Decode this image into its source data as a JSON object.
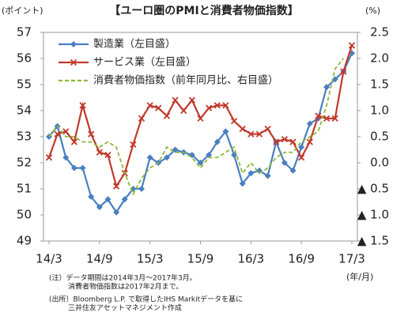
{
  "chart_data": {
    "type": "line",
    "title": "【ユーロ圏のPMIと消費者物価指数】",
    "y_label": "(ポイント)",
    "y2_label": "(%)",
    "x_label": "(年/月)",
    "categories": [
      "14/3",
      null,
      null,
      null,
      null,
      null,
      "14/9",
      null,
      null,
      null,
      null,
      null,
      "15/3",
      null,
      null,
      null,
      null,
      null,
      "15/9",
      null,
      null,
      null,
      null,
      null,
      "16/3",
      null,
      null,
      null,
      null,
      null,
      "16/9",
      null,
      null,
      null,
      null,
      null,
      "17/3"
    ],
    "series": [
      {
        "name": "製造業（左目盛）",
        "color": "#4a7fc1",
        "marker": "diamond",
        "values": [
          53.0,
          53.4,
          52.2,
          51.8,
          51.8,
          50.7,
          50.3,
          50.6,
          50.1,
          50.6,
          51.0,
          51.0,
          52.2,
          52.0,
          52.2,
          52.5,
          52.4,
          52.3,
          52.0,
          52.3,
          52.8,
          53.2,
          52.3,
          51.2,
          51.6,
          51.7,
          51.5,
          52.8,
          52.0,
          51.7,
          52.6,
          53.5,
          53.7,
          54.9,
          55.2,
          55.5,
          56.2
        ]
      },
      {
        "name": "サービス業（左目盛）",
        "color": "#c0392b",
        "marker": "x",
        "values": [
          52.2,
          53.1,
          53.2,
          52.8,
          54.2,
          53.1,
          52.4,
          52.3,
          51.1,
          51.6,
          52.7,
          53.7,
          54.2,
          54.1,
          53.8,
          54.4,
          54.0,
          54.4,
          53.7,
          54.1,
          54.2,
          54.2,
          53.6,
          53.3,
          53.1,
          53.1,
          53.3,
          52.8,
          52.9,
          52.8,
          52.2,
          52.8,
          53.8,
          53.7,
          53.7,
          55.5,
          56.5
        ]
      },
      {
        "name": "消費者物価指数（前年同月比、右目盛）",
        "color": "#8db83a",
        "dash": true,
        "axis": "y2",
        "values": [
          0.5,
          0.7,
          0.5,
          0.5,
          0.4,
          0.4,
          0.3,
          0.4,
          0.3,
          -0.2,
          -0.6,
          -0.3,
          -0.1,
          0.0,
          0.3,
          0.2,
          0.2,
          0.1,
          -0.1,
          0.1,
          0.1,
          0.2,
          0.3,
          -0.2,
          0.0,
          -0.2,
          -0.1,
          0.1,
          0.2,
          0.2,
          0.4,
          0.5,
          0.6,
          1.1,
          1.8,
          2.0,
          null
        ]
      }
    ],
    "ylim": [
      49,
      57
    ],
    "yticks": [
      49,
      50,
      51,
      52,
      53,
      54,
      55,
      56,
      57
    ],
    "y2lim": [
      -1.5,
      2.5
    ],
    "y2ticks": [
      {
        "value": 2.5,
        "label": "2.5"
      },
      {
        "value": 2.0,
        "label": "2.0"
      },
      {
        "value": 1.5,
        "label": "1.5"
      },
      {
        "value": 1.0,
        "label": "1.0"
      },
      {
        "value": 0.5,
        "label": "0.5"
      },
      {
        "value": 0.0,
        "label": "0.0"
      },
      {
        "value": -0.5,
        "label": "▲ 0.5"
      },
      {
        "value": -1.0,
        "label": "▲ 1.0"
      },
      {
        "value": -1.5,
        "label": "▲ 1.5"
      }
    ],
    "notes": [
      "(注）データ期間は2014年3月～2017年3月。",
      "消費者物価指数は2017年2月まで。",
      "(出所）Bloomberg L.P. で取得したIHS Markitデータを基に",
      "三井住友アセットマネジメント作成"
    ]
  }
}
